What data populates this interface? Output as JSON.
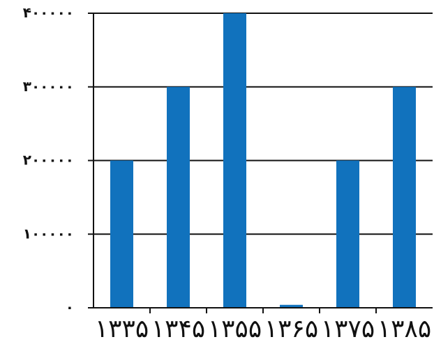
{
  "chart_data": {
    "type": "bar",
    "categories": [
      "۱۳۳۵",
      "۱۳۴۵",
      "۱۳۵۵",
      "۱۳۶۵",
      "۱۳۷۵",
      "۱۳۸۵"
    ],
    "values": [
      200000,
      300000,
      400000,
      4000,
      200000,
      300000
    ],
    "ylim": [
      0,
      400000
    ],
    "y_ticks": [
      0,
      100000,
      200000,
      300000,
      400000
    ],
    "y_tick_labels": [
      "۰",
      "۱۰۰۰۰۰",
      "۲۰۰۰۰۰",
      "۳۰۰۰۰۰",
      "۴۰۰۰۰۰"
    ],
    "title": "",
    "xlabel": "",
    "ylabel": "",
    "grid": "horizontal",
    "legend": "none",
    "bar_color": "#1172bd",
    "axis_color": "#111111"
  }
}
